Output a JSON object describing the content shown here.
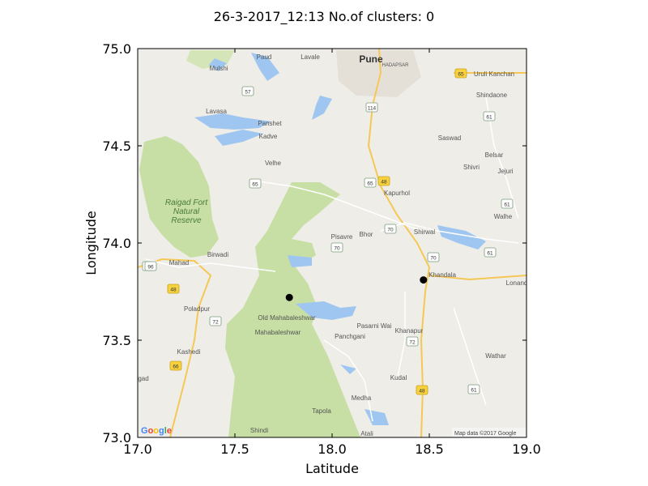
{
  "chart_data": {
    "type": "scatter",
    "title": "26-3-2017_12:13 No.of clusters: 0",
    "xlabel": "Latitude",
    "ylabel": "Longitude",
    "xlim": [
      17.0,
      19.0
    ],
    "ylim": [
      73.0,
      75.0
    ],
    "xticks": [
      "17.0",
      "17.5",
      "18.0",
      "18.5",
      "19.0"
    ],
    "yticks": [
      "73.0",
      "73.5",
      "74.0",
      "74.5",
      "75.0"
    ],
    "grid": false,
    "points": [
      {
        "x": 17.78,
        "y": 73.72
      },
      {
        "x": 18.47,
        "y": 73.81
      }
    ],
    "point_color": "#000000",
    "background": "map"
  },
  "map": {
    "labels": [
      "Paud",
      "Lavale",
      "Pune",
      "HADAPSAR",
      "Mulshi",
      "Uruli Kanchan",
      "Shindaone",
      "Lavasa",
      "Panshet",
      "Kadve",
      "Saswad",
      "Belsar",
      "Shivri",
      "Jejuri",
      "Velhe",
      "Kapurhol",
      "Walhe",
      "Pisavre",
      "Bhor",
      "Shirwal",
      "Mahad",
      "Birwadi",
      "Khandala",
      "Lonand",
      "Poladpur",
      "Old Mahabaleshwar",
      "Mahabaleshwar",
      "Pasarni Wai",
      "Khanapur",
      "Panchgani",
      "Kashedi",
      "Wathar",
      "Kudal",
      "Medha",
      "Tapola",
      "Shindi",
      "Atali",
      "gad"
    ],
    "park_label_lines": [
      "Raigad Fort",
      "Natural",
      "Reserve"
    ],
    "highway_shields": [
      "57",
      "114",
      "65",
      "61",
      "65",
      "48",
      "65",
      "70",
      "61",
      "70",
      "70",
      "96",
      "48",
      "70",
      "61",
      "72",
      "72",
      "66",
      "48",
      "61"
    ],
    "google_logo": "Google",
    "attribution": "Map data ©2017 Google"
  }
}
